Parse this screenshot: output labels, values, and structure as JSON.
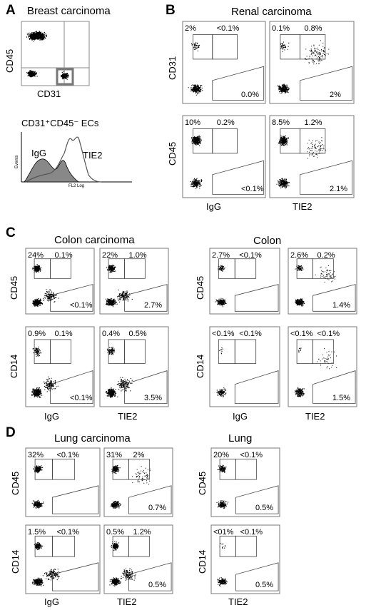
{
  "panels": {
    "A": {
      "letter": "A",
      "title": "Breast carcinoma",
      "scatter_y_label": "CD45",
      "scatter_x_label": "CD31",
      "hist_title": "CD31⁺CD45⁻ ECs",
      "hist_y_label": "Events",
      "hist_x_label": "FL2 Log",
      "hist_series": [
        "IgG",
        "TIE2"
      ]
    },
    "B": {
      "letter": "B",
      "title": "Renal carcinoma",
      "row_labels": [
        "CD31",
        "CD45"
      ],
      "col_labels": [
        "IgG",
        "TIE2"
      ],
      "pcts": {
        "r1c1": [
          "2%",
          "<0.1%",
          "0.0%"
        ],
        "r1c2": [
          "0.1%",
          "0.8%",
          "2%"
        ],
        "r2c1": [
          "10%",
          "0.2%",
          "<0.1%"
        ],
        "r2c2": [
          "8.5%",
          "1.2%",
          "2.1%"
        ]
      }
    },
    "C": {
      "letter": "C",
      "title_left": "Colon carcinoma",
      "title_right": "Colon",
      "row_labels": [
        "CD45",
        "CD14"
      ],
      "col_labels": [
        "IgG",
        "TIE2"
      ],
      "left": {
        "r1c1": [
          "24%",
          "0.1%",
          "<0.1%"
        ],
        "r1c2": [
          "22%",
          "1.0%",
          "2.7%"
        ],
        "r2c1": [
          "0.9%",
          "0.1%",
          "<0.1%"
        ],
        "r2c2": [
          "0.4%",
          "0.5%",
          "3.5%"
        ]
      },
      "right": {
        "r1c1": [
          "2.7%",
          "<0.1%",
          ""
        ],
        "r1c2": [
          "2.6%",
          "0.2%",
          "1.4%"
        ],
        "r2c1": [
          "<0.1%",
          "<0.1%",
          ""
        ],
        "r2c2": [
          "<0.1%",
          "<0.1%",
          "1.5%"
        ]
      }
    },
    "D": {
      "letter": "D",
      "title_left": "Lung carcinoma",
      "title_right": "Lung",
      "row_labels": [
        "CD45",
        "CD14"
      ],
      "col_labels": [
        "IgG",
        "TIE2"
      ],
      "right_col_label": "TIE2",
      "left": {
        "r1c1": [
          "32%",
          "<0.1%",
          ""
        ],
        "r1c2": [
          "31%",
          "2%",
          "0.7%"
        ],
        "r2c1": [
          "1.5%",
          "<0.1%",
          ""
        ],
        "r2c2": [
          "0.5%",
          "1.2%",
          "0.5%"
        ]
      },
      "right": {
        "r1": [
          "20%",
          "<0.1%",
          "0.5%"
        ],
        "r2": [
          "<01%",
          "<0.1%",
          "0.5%"
        ]
      }
    }
  }
}
